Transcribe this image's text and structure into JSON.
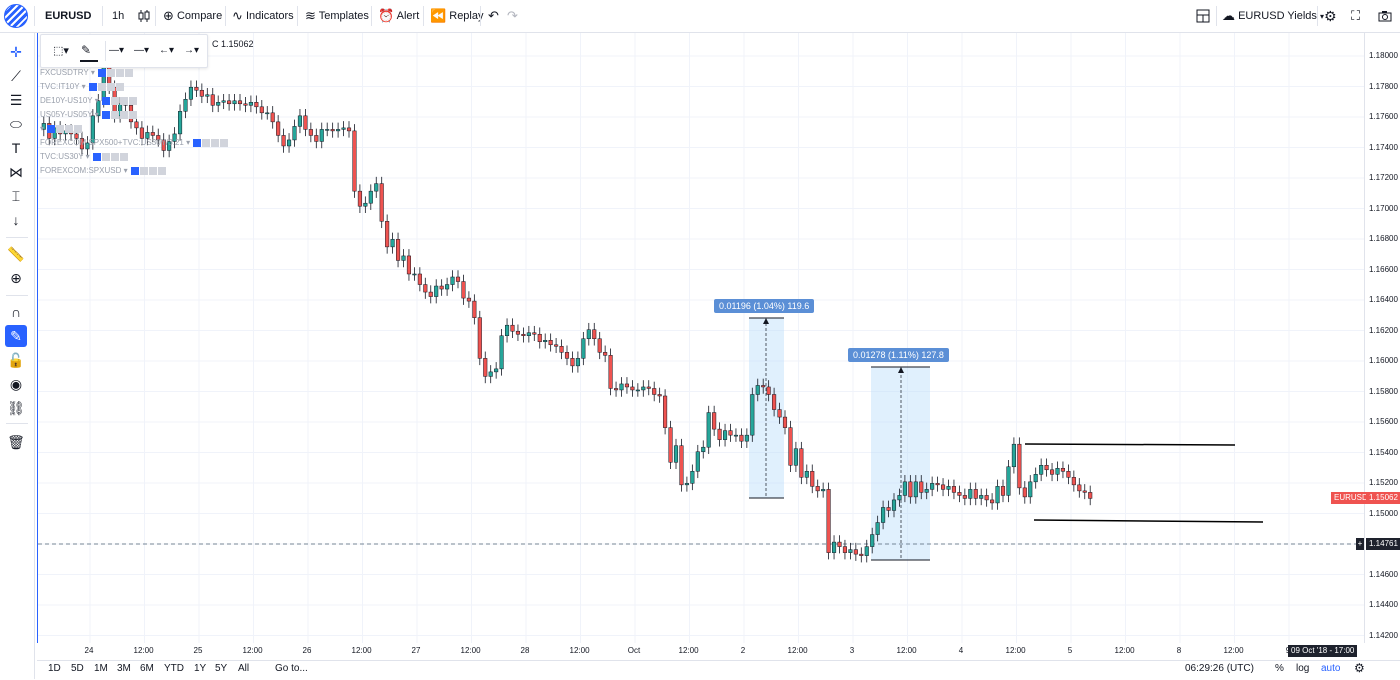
{
  "header": {
    "symbol": "EURUSD",
    "interval": "1h",
    "compare": "Compare",
    "indicators": "Indicators",
    "templates": "Templates",
    "alert": "Alert",
    "replay": "Replay",
    "layout_name": "EURUSD Yields"
  },
  "ohlc": {
    "close_label": "C 1.15062"
  },
  "legend": [
    "FXCUSDTRY",
    "TVC:IT10Y",
    "DE10Y-US10Y",
    "US05Y-US05Y",
    "",
    "FOREXCOM:SPX500+TVC:US30Y/3.21",
    "TVC:US30Y",
    "FOREXCOM:SPXUSD"
  ],
  "price_axis": {
    "ticks": [
      "1.18000",
      "1.17800",
      "1.17600",
      "1.17400",
      "1.17200",
      "1.17000",
      "1.16800",
      "1.16600",
      "1.16400",
      "1.16200",
      "1.16000",
      "1.15800",
      "1.15600",
      "1.15400",
      "1.15200",
      "1.15000",
      "1.14800",
      "1.14600",
      "1.14400",
      "1.14200"
    ],
    "current_symbol": "EURUSD",
    "current_price": "1.15062",
    "crosshair_price": "1.14761"
  },
  "time_axis": {
    "labels": [
      "24",
      "12:00",
      "25",
      "12:00",
      "26",
      "12:00",
      "27",
      "12:00",
      "28",
      "12:00",
      "Oct",
      "12:00",
      "2",
      "12:00",
      "3",
      "12:00",
      "4",
      "12:00",
      "5",
      "12:00",
      "8",
      "12:00",
      "9"
    ],
    "crosshair_time": "09 Oct '18 - 17:00"
  },
  "measures": [
    {
      "label": "0.01196 (1.04%) 119.6"
    },
    {
      "label": "0.01278 (1.11%) 127.8"
    }
  ],
  "bottom": {
    "ranges": [
      "1D",
      "5D",
      "1M",
      "3M",
      "6M",
      "YTD",
      "1Y",
      "5Y",
      "All"
    ],
    "goto": "Go to...",
    "time": "06:29:26 (UTC)",
    "percent": "%",
    "log": "log",
    "auto": "auto"
  },
  "chart_data": {
    "type": "candlestick",
    "symbol": "EURUSD",
    "interval": "1h",
    "ylim": [
      1.141,
      1.1815
    ],
    "bullish_color": "#26a69a",
    "bearish_color": "#ef5350",
    "closes": [
      1.1755,
      1.1745,
      1.1752,
      1.1748,
      1.175,
      1.1748,
      1.1745,
      1.1738,
      1.1742,
      1.176,
      1.177,
      1.1793,
      1.1779,
      1.176,
      1.1768,
      1.1767,
      1.1756,
      1.1752,
      1.1745,
      1.1749,
      1.1747,
      1.1744,
      1.1737,
      1.1743,
      1.1748,
      1.1763,
      1.1771,
      1.1779,
      1.1777,
      1.1773,
      1.1774,
      1.1767,
      1.1769,
      1.177,
      1.1768,
      1.177,
      1.1768,
      1.1767,
      1.1769,
      1.1766,
      1.1762,
      1.1762,
      1.1756,
      1.1747,
      1.174,
      1.1744,
      1.1753,
      1.176,
      1.1751,
      1.1747,
      1.1743,
      1.1751,
      1.1751,
      1.175,
      1.1751,
      1.1752,
      1.175,
      1.171,
      1.17,
      1.1702,
      1.171,
      1.1715,
      1.169,
      1.1673,
      1.1678,
      1.1664,
      1.1667,
      1.1655,
      1.1655,
      1.1648,
      1.1643,
      1.164,
      1.1647,
      1.1645,
      1.1648,
      1.1653,
      1.165,
      1.1639,
      1.1637,
      1.1626,
      1.1599,
      1.1587,
      1.159,
      1.1592,
      1.1614,
      1.1621,
      1.1617,
      1.1615,
      1.1614,
      1.1616,
      1.1615,
      1.161,
      1.1611,
      1.1608,
      1.1607,
      1.1603,
      1.1599,
      1.1594,
      1.1599,
      1.1612,
      1.1618,
      1.1612,
      1.1603,
      1.1601,
      1.1579,
      1.1578,
      1.1582,
      1.158,
      1.1578,
      1.1578,
      1.158,
      1.1579,
      1.1575,
      1.1574,
      1.1553,
      1.153,
      1.1541,
      1.1515,
      1.1516,
      1.1524,
      1.1537,
      1.154,
      1.1563,
      1.1552,
      1.1545,
      1.1551,
      1.1548,
      1.1548,
      1.1544,
      1.1548,
      1.1575,
      1.1581,
      1.158,
      1.1575,
      1.1565,
      1.156,
      1.1553,
      1.1528,
      1.1539,
      1.152,
      1.1524,
      1.1514,
      1.1511,
      1.1512,
      1.147,
      1.1477,
      1.1474,
      1.147,
      1.1472,
      1.1469,
      1.1468,
      1.1474,
      1.1482,
      1.149,
      1.15,
      1.1498,
      1.1505,
      1.1508,
      1.1517,
      1.1507,
      1.1517,
      1.151,
      1.1512,
      1.1516,
      1.1515,
      1.1512,
      1.1514,
      1.151,
      1.1508,
      1.1506,
      1.1512,
      1.1506,
      1.1508,
      1.1505,
      1.1503,
      1.1514,
      1.1508,
      1.1527,
      1.1542,
      1.1513,
      1.1507,
      1.1517,
      1.1522,
      1.1528,
      1.1525,
      1.1522,
      1.1526,
      1.1524,
      1.152,
      1.1515,
      1.1511,
      1.151,
      1.1506
    ]
  }
}
